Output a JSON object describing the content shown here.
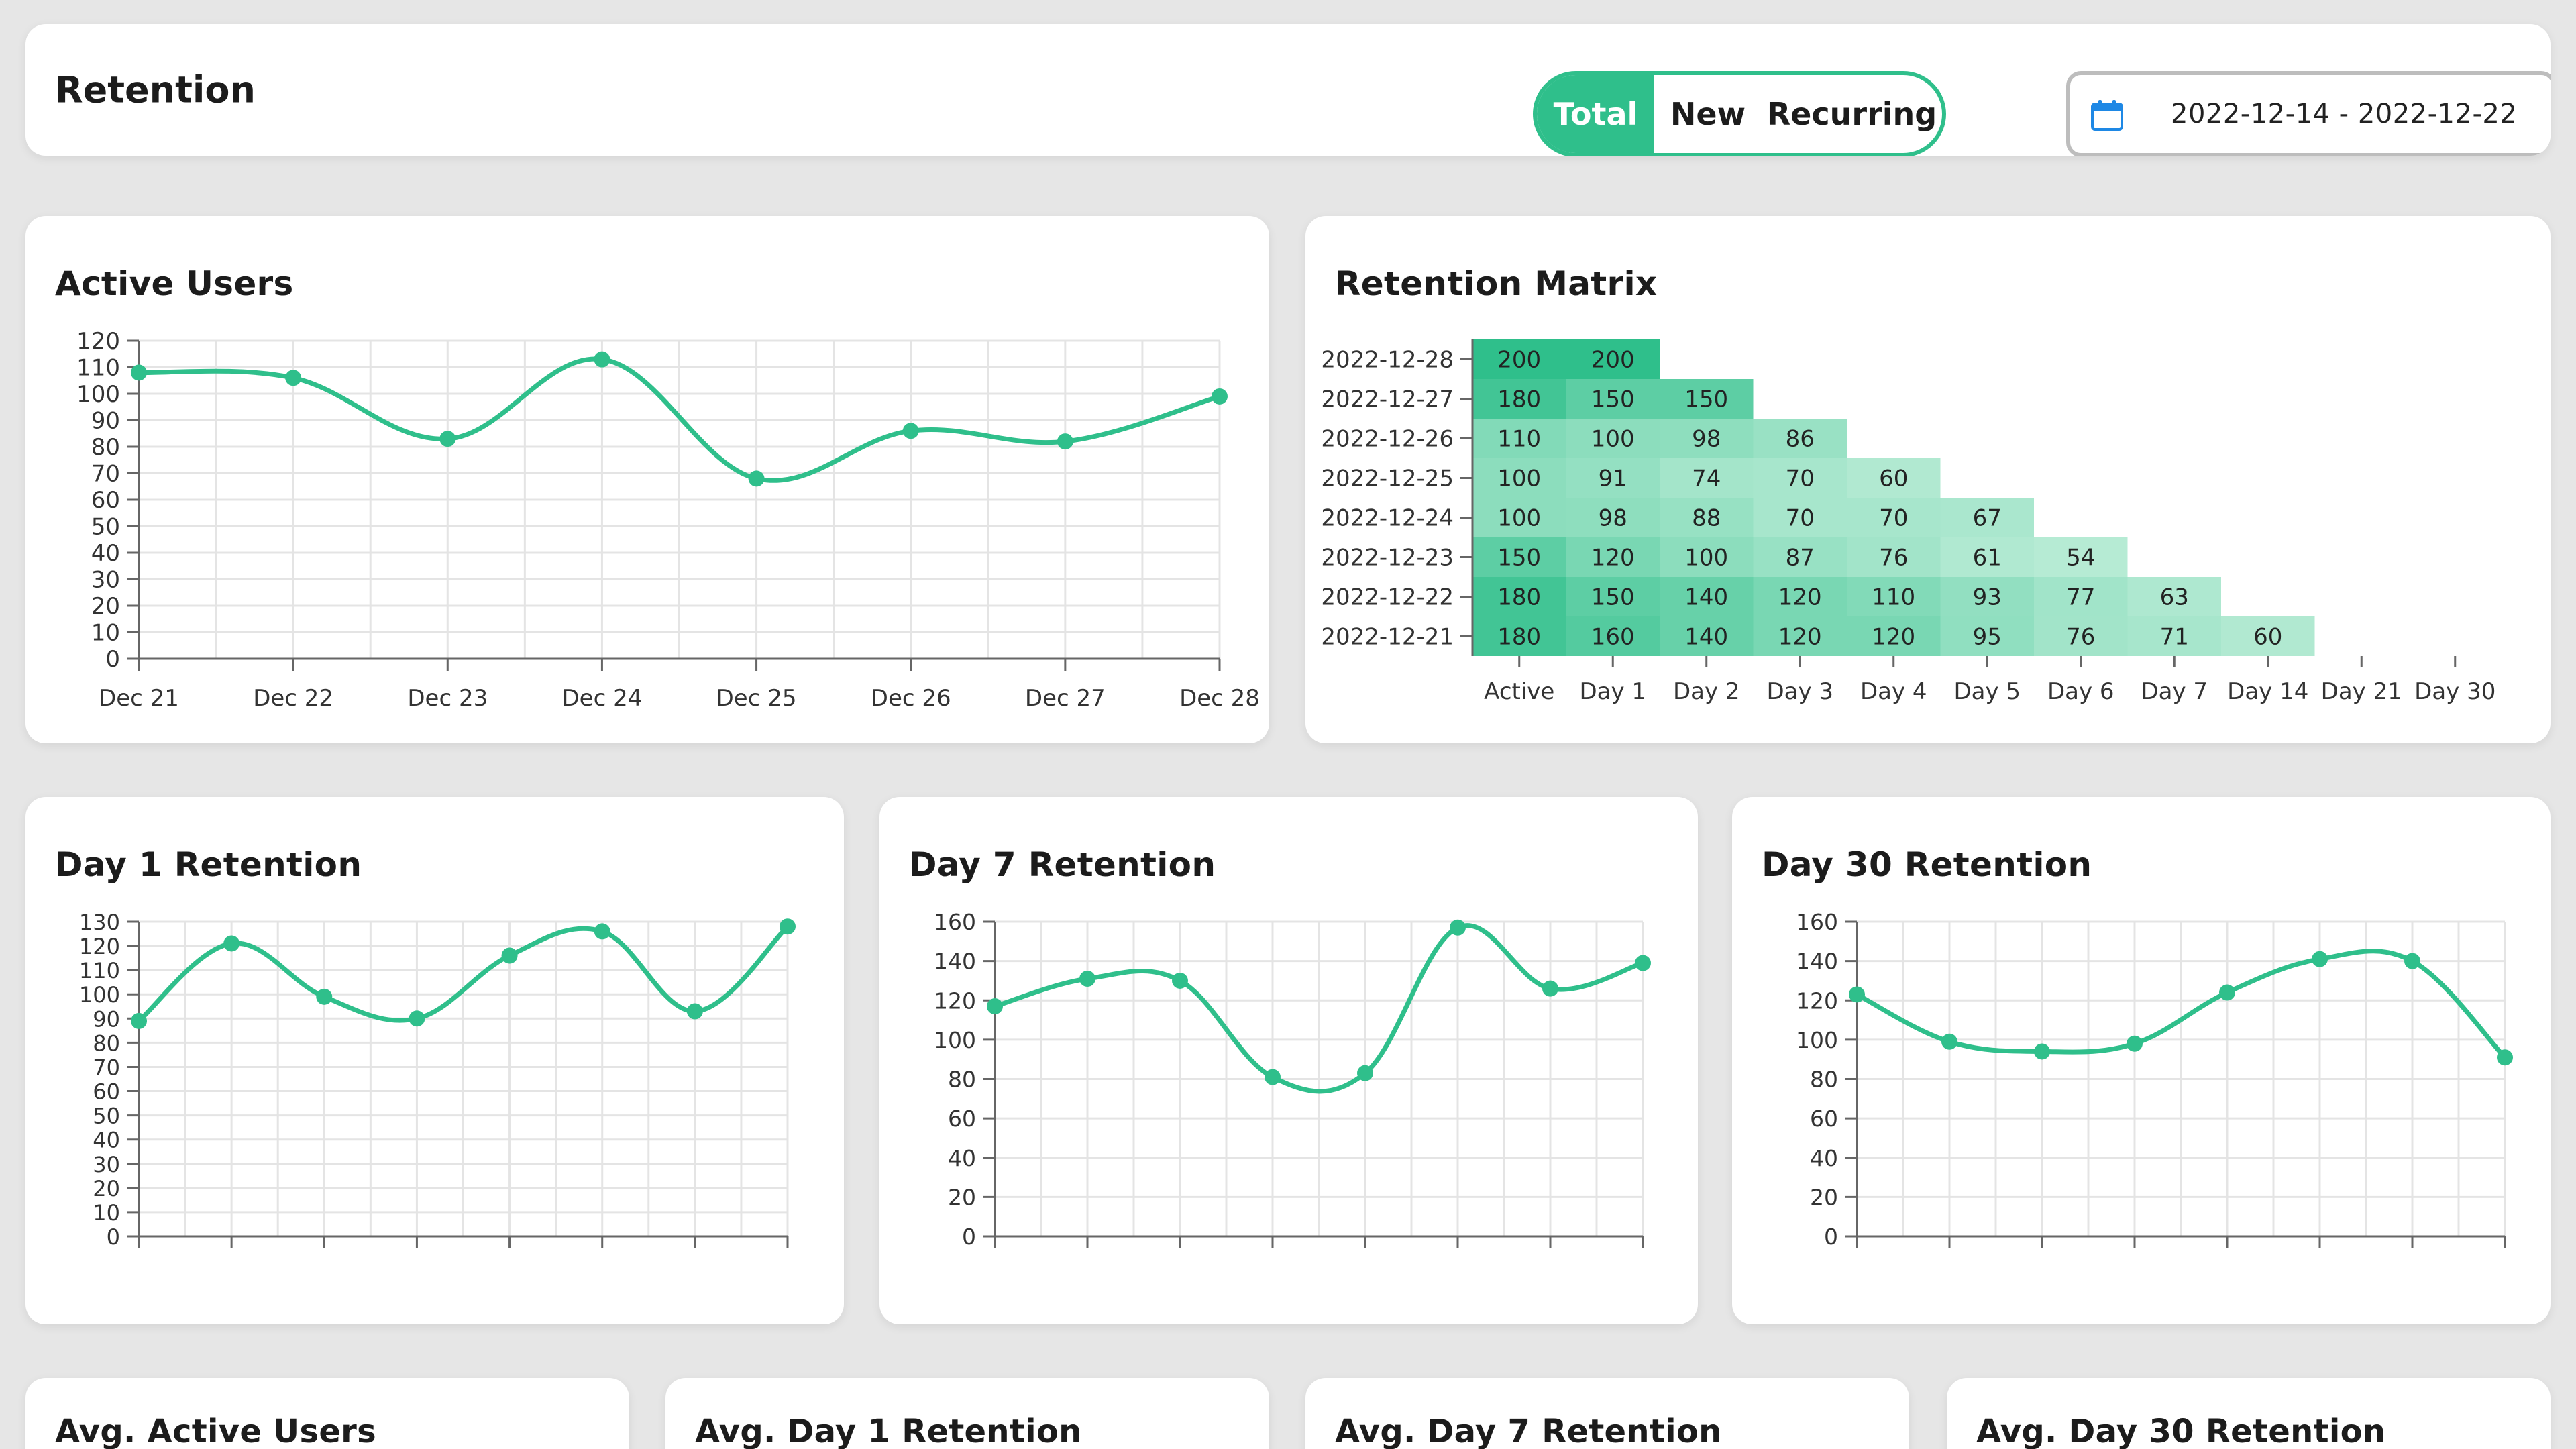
{
  "header": {
    "title": "Retention",
    "segments": [
      {
        "label": "Total",
        "active": true
      },
      {
        "label": "New",
        "active": false
      },
      {
        "label": "Recurring",
        "active": false
      }
    ],
    "date_range": "2022-12-14 - 2022-12-22",
    "calendar_icon": "calendar-icon"
  },
  "colors": {
    "accent": "#2fbf8b",
    "grid": "#e4e4e4",
    "axis": "#666666"
  },
  "active_users": {
    "title": "Active Users",
    "chart_data": {
      "type": "line",
      "categories": [
        "Dec 21",
        "Dec 22",
        "Dec 23",
        "Dec 24",
        "Dec 25",
        "Dec 26",
        "Dec 27",
        "Dec 28"
      ],
      "values": [
        108,
        106,
        83,
        113,
        68,
        86,
        82,
        99
      ],
      "yticks": [
        0,
        10,
        20,
        30,
        40,
        50,
        60,
        70,
        80,
        90,
        100,
        110,
        120
      ],
      "ylim": [
        0,
        120
      ],
      "grid": true
    }
  },
  "retention_matrix": {
    "title": "Retention Matrix",
    "chart_data": {
      "type": "heatmap",
      "columns": [
        "Active",
        "Day 1",
        "Day 2",
        "Day 3",
        "Day 4",
        "Day 5",
        "Day 6",
        "Day 7",
        "Day 14",
        "Day 21",
        "Day 30"
      ],
      "rows": [
        {
          "date": "2022-12-28",
          "values": [
            200,
            200
          ]
        },
        {
          "date": "2022-12-27",
          "values": [
            180,
            150,
            150
          ]
        },
        {
          "date": "2022-12-26",
          "values": [
            110,
            100,
            98,
            86
          ]
        },
        {
          "date": "2022-12-25",
          "values": [
            100,
            91,
            74,
            70,
            60
          ]
        },
        {
          "date": "2022-12-24",
          "values": [
            100,
            98,
            88,
            70,
            70,
            67
          ]
        },
        {
          "date": "2022-12-23",
          "values": [
            150,
            120,
            100,
            87,
            76,
            61,
            54
          ]
        },
        {
          "date": "2022-12-22",
          "values": [
            180,
            150,
            140,
            120,
            110,
            93,
            77,
            63
          ]
        },
        {
          "date": "2022-12-21",
          "values": [
            180,
            160,
            140,
            120,
            120,
            95,
            76,
            71,
            60
          ]
        }
      ]
    }
  },
  "day1": {
    "title": "Day 1 Retention",
    "chart_data": {
      "type": "line",
      "values": [
        89,
        121,
        99,
        90,
        116,
        126,
        93,
        128
      ],
      "yticks": [
        0,
        10,
        20,
        30,
        40,
        50,
        60,
        70,
        80,
        90,
        100,
        110,
        120,
        130
      ],
      "ylim": [
        0,
        130
      ],
      "grid": true
    }
  },
  "day7": {
    "title": "Day 7 Retention",
    "chart_data": {
      "type": "line",
      "values": [
        117,
        131,
        130,
        81,
        83,
        157,
        126,
        139
      ],
      "yticks": [
        0,
        20,
        40,
        60,
        80,
        100,
        120,
        140,
        160
      ],
      "ylim": [
        0,
        160
      ],
      "grid": true
    }
  },
  "day30": {
    "title": "Day 30 Retention",
    "chart_data": {
      "type": "line",
      "values": [
        123,
        99,
        94,
        98,
        124,
        141,
        140,
        91
      ],
      "yticks": [
        0,
        20,
        40,
        60,
        80,
        100,
        120,
        140,
        160
      ],
      "ylim": [
        0,
        160
      ],
      "grid": true
    }
  },
  "averages": {
    "active": "Avg. Active Users",
    "d1": "Avg. Day 1 Retention",
    "d7": "Avg. Day 7 Retention",
    "d30": "Avg. Day 30 Retention"
  }
}
